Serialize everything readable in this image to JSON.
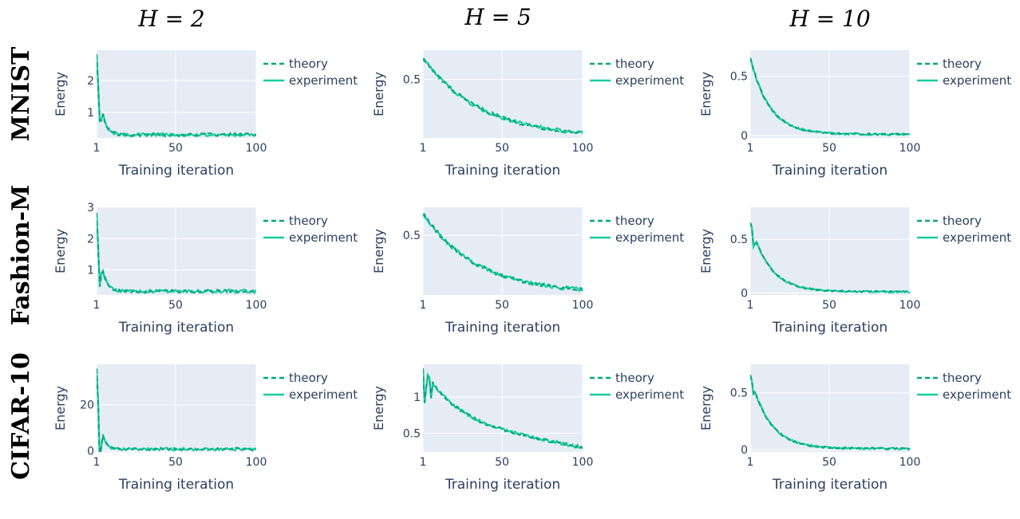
{
  "colors": {
    "plot_bg": "#e5ecf6",
    "grid": "#ffffff",
    "theory": "#00a77a",
    "experiment": "#19cca0",
    "text": "#2a3f5f"
  },
  "chart_data": {
    "type": "line",
    "column_titles": [
      "H = 2",
      "H = 5",
      "H = 10"
    ],
    "row_titles": [
      "MNIST",
      "Fashion-M",
      "CIFAR-10"
    ],
    "xlabel": "Training iteration",
    "ylabel": "Energy",
    "xlim": [
      1,
      100
    ],
    "xticks": [
      1,
      50,
      100
    ],
    "legend": [
      "theory",
      "experiment"
    ],
    "legend_placement": "right of each panel",
    "panels": [
      {
        "row": "MNIST",
        "column": "H = 2",
        "ylim": [
          0.2,
          2.95
        ],
        "yticks": [
          1,
          2
        ],
        "curve": {
          "start": 2.85,
          "end": 0.3,
          "decay": 0.35,
          "noise": 0.05,
          "spikes": [
            [
              1,
              0.3
            ],
            [
              2,
              0.85
            ],
            [
              3,
              0.45
            ]
          ]
        }
      },
      {
        "row": "MNIST",
        "column": "H = 5",
        "ylim": [
          0.04,
          0.73
        ],
        "yticks": [
          0.5
        ],
        "curve": {
          "start": 0.67,
          "end": 0.04,
          "decay": 0.028,
          "noise": 0.014
        }
      },
      {
        "row": "MNIST",
        "column": "H = 10",
        "ylim": [
          -0.02,
          0.72
        ],
        "yticks": [
          0,
          0.5
        ],
        "curve": {
          "start": 0.66,
          "end": 0.01,
          "decay": 0.085,
          "noise": 0.008
        }
      },
      {
        "row": "Fashion-M",
        "column": "H = 2",
        "ylim": [
          0.2,
          3.0
        ],
        "yticks": [
          1,
          2,
          3
        ],
        "curve": {
          "start": 2.85,
          "end": 0.32,
          "decay": 0.35,
          "noise": 0.05,
          "spikes": [
            [
              1,
              0.4
            ],
            [
              2,
              1.1
            ],
            [
              3,
              0.35
            ]
          ]
        }
      },
      {
        "row": "Fashion-M",
        "column": "H = 5",
        "ylim": [
          0.03,
          0.72
        ],
        "yticks": [
          0.5
        ],
        "curve": {
          "start": 0.67,
          "end": 0.04,
          "decay": 0.03,
          "noise": 0.014
        }
      },
      {
        "row": "Fashion-M",
        "column": "H = 10",
        "ylim": [
          -0.02,
          0.8
        ],
        "yticks": [
          0,
          0.5
        ],
        "curve": {
          "start": 0.66,
          "end": 0.01,
          "decay": 0.085,
          "noise": 0.008,
          "spikes": [
            [
              2,
              0.12
            ],
            [
              3,
              0.06
            ]
          ]
        }
      },
      {
        "row": "CIFAR-10",
        "column": "H = 2",
        "ylim": [
          -0.5,
          37.5
        ],
        "yticks": [
          0,
          20
        ],
        "curve": {
          "start": 36,
          "end": 0.8,
          "decay": 0.45,
          "noise": 0.55,
          "spikes": [
            [
              1,
              3
            ],
            [
              2,
              20
            ],
            [
              3,
              8
            ]
          ]
        }
      },
      {
        "row": "CIFAR-10",
        "column": "H = 5",
        "ylim": [
          0.24,
          1.45
        ],
        "yticks": [
          0.5,
          1
        ],
        "curve": {
          "start": 1.4,
          "end": 0.3,
          "decay": 0.05,
          "noise": 0.02,
          "linear_tail": true,
          "spikes": [
            [
              1,
              0.45
            ],
            [
              2,
              0.2
            ],
            [
              5,
              0.25
            ]
          ]
        }
      },
      {
        "row": "CIFAR-10",
        "column": "H = 10",
        "ylim": [
          -0.02,
          0.75
        ],
        "yticks": [
          0,
          0.5
        ],
        "curve": {
          "start": 0.66,
          "end": 0.01,
          "decay": 0.085,
          "noise": 0.008,
          "spikes": [
            [
              2,
              0.06
            ]
          ]
        }
      }
    ]
  }
}
